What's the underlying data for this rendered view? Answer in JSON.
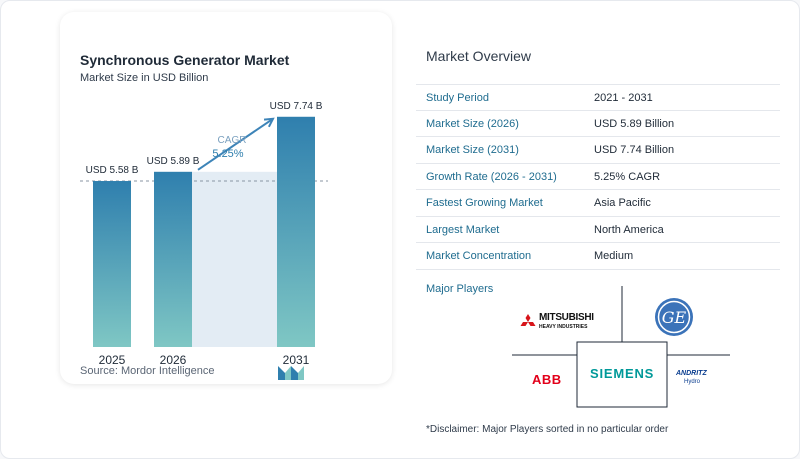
{
  "chart_data": {
    "type": "bar",
    "title": "Synchronous Generator Market",
    "subtitle": "Market Size in USD Billion",
    "categories": [
      "2025",
      "2026",
      "2031"
    ],
    "values": [
      5.58,
      5.89,
      7.74
    ],
    "data_labels": [
      "USD 5.58 B",
      "USD 5.89 B",
      "USD 7.74 B"
    ],
    "cagr_label": "CAGR",
    "cagr_value": "5.25%",
    "ylim": [
      0,
      8
    ],
    "colors": {
      "bar_top": "#2f7fae",
      "bar_bottom": "#7fc7c4",
      "shade": "#e3ecf4",
      "arrow": "#3d84b8",
      "cagr_label": "#7aa0bf",
      "cagr_value": "#2f7fae"
    }
  },
  "source": "Source:  Mordor Intelligence",
  "overview": {
    "title": "Market Overview",
    "rows": [
      {
        "label": "Study Period",
        "value": "2021 - 2031"
      },
      {
        "label": "Market Size (2026)",
        "value": "USD 5.89 Billion"
      },
      {
        "label": "Market Size (2031)",
        "value": "USD 7.74 Billion"
      },
      {
        "label": "Growth Rate (2026 - 2031)",
        "value": "5.25% CAGR"
      },
      {
        "label": "Fastest Growing Market",
        "value": "Asia Pacific"
      },
      {
        "label": "Largest Market",
        "value": "North America"
      },
      {
        "label": "Market Concentration",
        "value": "Medium"
      }
    ]
  },
  "players": {
    "title": "Major Players",
    "logos": {
      "mitsubishi": {
        "line1": "MITSUBISHI",
        "line2": "HEAVY INDUSTRIES"
      },
      "ge": {
        "text": "GE"
      },
      "abb": {
        "text": "ABB"
      },
      "siemens": {
        "text": "SIEMENS"
      },
      "andritz": {
        "line1": "ANDRITZ",
        "line2": "Hydro"
      }
    }
  },
  "disclaimer": "*Disclaimer: Major Players sorted in no particular order"
}
